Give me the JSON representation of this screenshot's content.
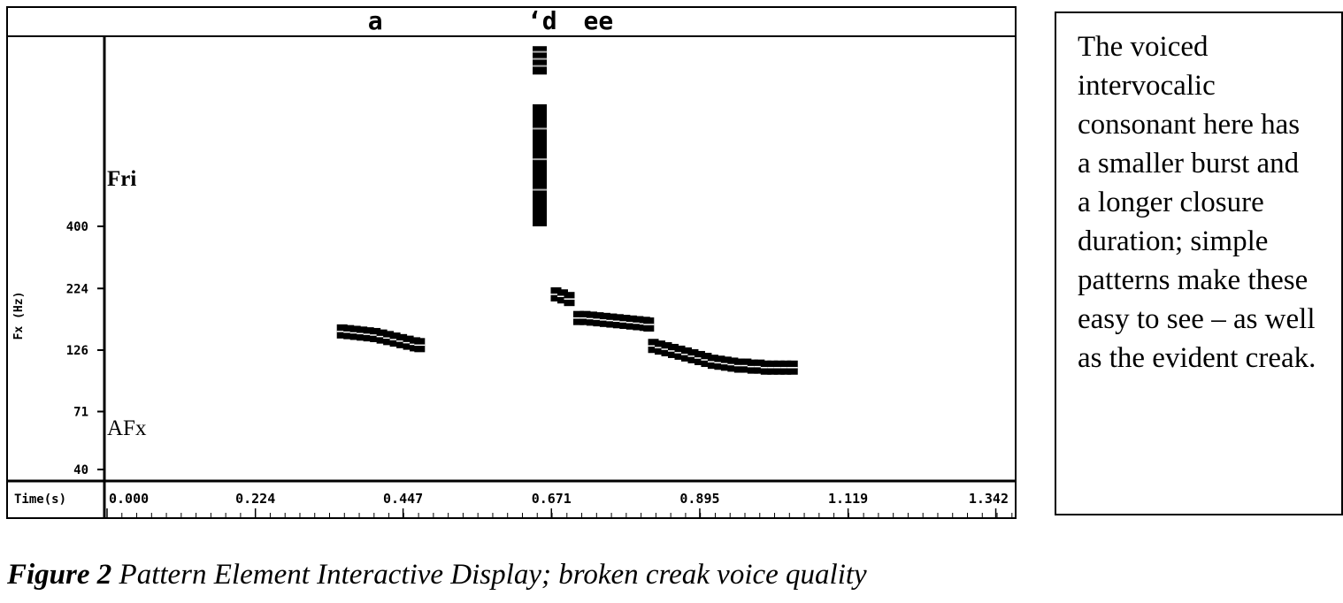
{
  "chart_data": {
    "type": "scatter",
    "segment_labels": [
      {
        "text": "a",
        "t": 0.405
      },
      {
        "text": "‘d",
        "t": 0.657
      },
      {
        "text": "ee",
        "t": 0.742
      }
    ],
    "ylabel": "Fx (Hz)",
    "xaxis_label": "Time(s)",
    "x_ticks": [
      "0.000",
      "0.224",
      "0.447",
      "0.671",
      "0.895",
      "1.119",
      "1.342"
    ],
    "x_tick_values": [
      0.0,
      0.224,
      0.447,
      0.671,
      0.895,
      1.119,
      1.342
    ],
    "xlim": [
      0.0,
      1.372
    ],
    "y_scale": "log",
    "y_ticks": [
      "400",
      "224",
      "126",
      "71",
      "40"
    ],
    "y_tick_values": [
      400,
      224,
      126,
      71,
      40
    ],
    "ylim": [
      40,
      2190
    ],
    "band_labels": {
      "fri": "Fri",
      "afx": "AFx"
    },
    "series": [
      {
        "x": [
          0.355,
          0.365,
          0.375,
          0.385,
          0.395,
          0.405,
          0.415,
          0.425,
          0.435,
          0.445,
          0.455,
          0.465,
          0.472
        ],
        "y": [
          150,
          149,
          148,
          147,
          146,
          145,
          143,
          141,
          139,
          137,
          135,
          133,
          132
        ]
      },
      {
        "x": [
          0.678,
          0.688,
          0.698
        ],
        "y": [
          212,
          208,
          203
        ]
      },
      {
        "x": [
          0.712,
          0.722,
          0.732,
          0.742,
          0.752,
          0.762,
          0.772,
          0.782,
          0.792,
          0.802,
          0.812,
          0.818
        ],
        "y": [
          170,
          170,
          169,
          168,
          167,
          166,
          165,
          164,
          163,
          162,
          161,
          160
        ]
      },
      {
        "x": [
          0.825,
          0.835,
          0.845,
          0.855,
          0.865,
          0.875,
          0.885,
          0.895,
          0.905,
          0.915,
          0.925,
          0.935,
          0.945,
          0.955,
          0.965,
          0.975,
          0.985,
          0.995,
          1.005,
          1.015,
          1.025,
          1.035
        ],
        "y": [
          131,
          129,
          127,
          125,
          123,
          121,
          119,
          117,
          115,
          113,
          112,
          111,
          110,
          109,
          109,
          108,
          108,
          107,
          107,
          107,
          107,
          107
        ]
      }
    ],
    "frication": [
      {
        "x": 0.652,
        "y_from": 400,
        "y_to": 1250
      },
      {
        "x": 0.652,
        "y_from": 1650,
        "y_to": 2150
      }
    ]
  },
  "note": "The voiced intervocalic consonant here has a smaller burst and a longer closure duration; simple patterns make these easy to see – as well as the evident creak.",
  "caption": {
    "figure": "Figure 2",
    "text": " Pattern Element Interactive Display; broken creak voice quality"
  }
}
